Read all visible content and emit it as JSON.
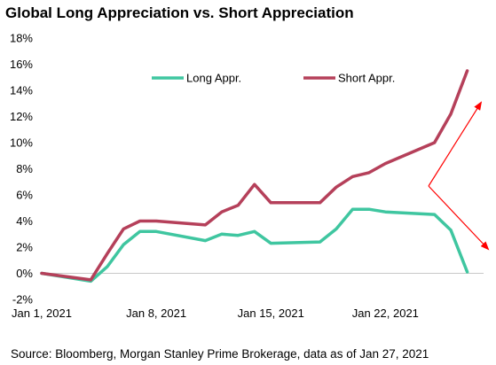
{
  "chart_data": {
    "type": "line",
    "title": "Global Long Appreciation vs. Short Appreciation",
    "xlabel": "",
    "ylabel": "",
    "x_tick_labels": [
      "Jan 1, 2021",
      "Jan 8, 2021",
      "Jan 15, 2021",
      "Jan 22, 2021"
    ],
    "y_tick_labels": [
      "-2%",
      "0%",
      "2%",
      "4%",
      "6%",
      "8%",
      "10%",
      "12%",
      "14%",
      "16%",
      "18%"
    ],
    "ylim": [
      -2,
      18
    ],
    "xlim": [
      "2021-01-01",
      "2021-01-28"
    ],
    "legend_position": "top-center",
    "grid": false,
    "series": [
      {
        "name": "Long Appr.",
        "color": "#3fc6a0",
        "x": [
          "2021-01-01",
          "2021-01-04",
          "2021-01-05",
          "2021-01-06",
          "2021-01-07",
          "2021-01-08",
          "2021-01-11",
          "2021-01-12",
          "2021-01-13",
          "2021-01-14",
          "2021-01-15",
          "2021-01-18",
          "2021-01-19",
          "2021-01-20",
          "2021-01-21",
          "2021-01-22",
          "2021-01-25",
          "2021-01-26",
          "2021-01-27"
        ],
        "values": [
          0.0,
          -0.6,
          0.5,
          2.2,
          3.2,
          3.2,
          2.5,
          3.0,
          2.9,
          3.2,
          2.3,
          2.4,
          3.4,
          4.9,
          4.9,
          4.7,
          4.5,
          3.3,
          0.1
        ]
      },
      {
        "name": "Short Appr.",
        "color": "#b5405a",
        "x": [
          "2021-01-01",
          "2021-01-04",
          "2021-01-05",
          "2021-01-06",
          "2021-01-07",
          "2021-01-08",
          "2021-01-11",
          "2021-01-12",
          "2021-01-13",
          "2021-01-14",
          "2021-01-15",
          "2021-01-18",
          "2021-01-19",
          "2021-01-20",
          "2021-01-21",
          "2021-01-22",
          "2021-01-25",
          "2021-01-26",
          "2021-01-27"
        ],
        "values": [
          0.0,
          -0.5,
          1.5,
          3.4,
          4.0,
          4.0,
          3.7,
          4.7,
          5.2,
          6.8,
          5.4,
          5.4,
          6.6,
          7.4,
          7.7,
          8.4,
          10.0,
          12.2,
          15.5
        ]
      }
    ],
    "annotation_arrow_color": "#ff0000"
  },
  "footer": {
    "source": "Source: Bloomberg, Morgan Stanley Prime Brokerage, data as of Jan 27, 2021"
  }
}
